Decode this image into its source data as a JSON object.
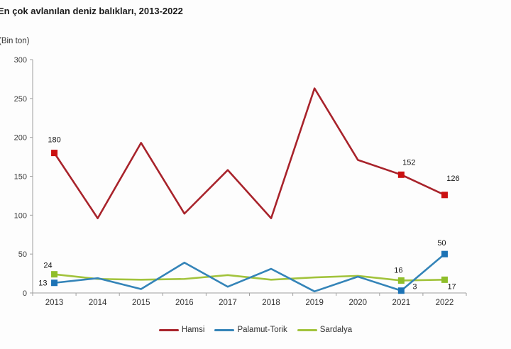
{
  "title": "En çok avlanılan deniz balıkları, 2013-2022",
  "y_axis_unit": "(Bin ton)",
  "chart_data": {
    "type": "line",
    "title": "En çok avlanılan deniz balıkları, 2013-2022",
    "ylabel": "(Bin ton)",
    "categories": [
      "2013",
      "2014",
      "2015",
      "2016",
      "2017",
      "2018",
      "2019",
      "2020",
      "2021",
      "2022"
    ],
    "ylim": [
      0,
      300
    ],
    "y_ticks": [
      0,
      50,
      100,
      150,
      200,
      250,
      300
    ],
    "grid": false,
    "legend_position": "bottom",
    "series": [
      {
        "name": "Hamsi",
        "color": "#a8232b",
        "marker_color": "#cb1111",
        "values": [
          180,
          96,
          193,
          102,
          158,
          96,
          263,
          171,
          152,
          126
        ],
        "marker_indices": [
          0,
          8,
          9
        ],
        "labels": [
          {
            "index": 0,
            "text": "180",
            "anchor": "middle",
            "offset": [
              0,
              -15
            ]
          },
          {
            "index": 8,
            "text": "152",
            "anchor": "middle",
            "offset": [
              11,
              -14
            ]
          },
          {
            "index": 9,
            "text": "126",
            "anchor": "middle",
            "offset": [
              12,
              -20
            ]
          }
        ]
      },
      {
        "name": "Palamut-Torik",
        "color": "#3484b8",
        "marker_color": "#1d73b5",
        "values": [
          13,
          19,
          5,
          39,
          8,
          31,
          2,
          21,
          3,
          50
        ],
        "marker_indices": [
          0,
          8,
          9
        ],
        "labels": [
          {
            "index": 0,
            "text": "13",
            "anchor": "end",
            "offset": [
              -10,
              4
            ]
          },
          {
            "index": 8,
            "text": "3",
            "anchor": "start",
            "offset": [
              16,
              -2
            ]
          },
          {
            "index": 9,
            "text": "50",
            "anchor": "middle",
            "offset": [
              -4,
              -12
            ]
          }
        ]
      },
      {
        "name": "Sardalya",
        "color": "#a2c33c",
        "marker_color": "#8fbe2a",
        "values": [
          24,
          18,
          17,
          18,
          23,
          17,
          20,
          22,
          16,
          17
        ],
        "marker_indices": [
          0,
          8,
          9
        ],
        "labels": [
          {
            "index": 0,
            "text": "24",
            "anchor": "middle",
            "offset": [
              -9,
              -9
            ]
          },
          {
            "index": 8,
            "text": "16",
            "anchor": "middle",
            "offset": [
              -4,
              -11
            ]
          },
          {
            "index": 9,
            "text": "17",
            "anchor": "start",
            "offset": [
              4,
              13
            ]
          }
        ]
      }
    ]
  }
}
